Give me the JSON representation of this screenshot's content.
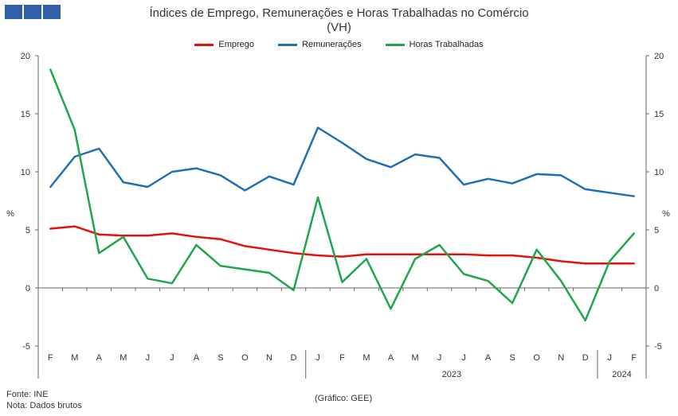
{
  "title_line1": "Índices de Emprego, Remunerações e Horas Trabalhadas no Comércio",
  "title_line2": "(VH)",
  "source": "Fonte: INE",
  "note": "Nota: Dados brutos",
  "credit": "(Gráfico: GEE)",
  "chart_data": {
    "type": "line",
    "x": [
      "F",
      "M",
      "A",
      "M",
      "J",
      "J",
      "A",
      "S",
      "O",
      "N",
      "D",
      "J",
      "F",
      "M",
      "A",
      "M",
      "J",
      "J",
      "A",
      "S",
      "O",
      "N",
      "D",
      "J",
      "F"
    ],
    "year_labels": [
      {
        "label": "2023",
        "start": 11,
        "end": 22
      },
      {
        "label": "2024",
        "start": 23,
        "end": 24
      }
    ],
    "ylabel_left": "%",
    "ylabel_right": "%",
    "ylim": [
      -5,
      20
    ],
    "yticks": [
      -5,
      0,
      5,
      10,
      15,
      20
    ],
    "grid": false,
    "legend_position": "top",
    "series": [
      {
        "name": "Emprego",
        "color": "#e3120b",
        "values": [
          5.1,
          5.3,
          4.6,
          4.5,
          4.5,
          4.7,
          4.4,
          4.2,
          3.6,
          3.3,
          3.0,
          2.8,
          2.7,
          2.9,
          2.9,
          2.9,
          2.9,
          2.9,
          2.8,
          2.8,
          2.6,
          2.3,
          2.1,
          2.1,
          2.1
        ]
      },
      {
        "name": "Remunerações",
        "color": "#1f6fb5",
        "values": [
          8.7,
          11.3,
          12.0,
          9.1,
          8.7,
          10.0,
          10.3,
          9.7,
          8.4,
          9.6,
          8.9,
          13.8,
          12.5,
          11.1,
          10.4,
          11.5,
          11.2,
          8.9,
          9.4,
          9.0,
          9.8,
          9.7,
          8.5,
          8.2,
          7.9
        ]
      },
      {
        "name": "Horas Trabalhadas",
        "color": "#1fa64a",
        "values": [
          18.8,
          13.6,
          3.0,
          4.4,
          0.8,
          0.4,
          3.7,
          1.9,
          1.6,
          1.3,
          -0.2,
          7.8,
          0.5,
          2.5,
          -1.8,
          2.5,
          3.7,
          1.2,
          0.6,
          -1.3,
          3.3,
          0.6,
          -2.8,
          2.3,
          4.7
        ]
      }
    ]
  }
}
